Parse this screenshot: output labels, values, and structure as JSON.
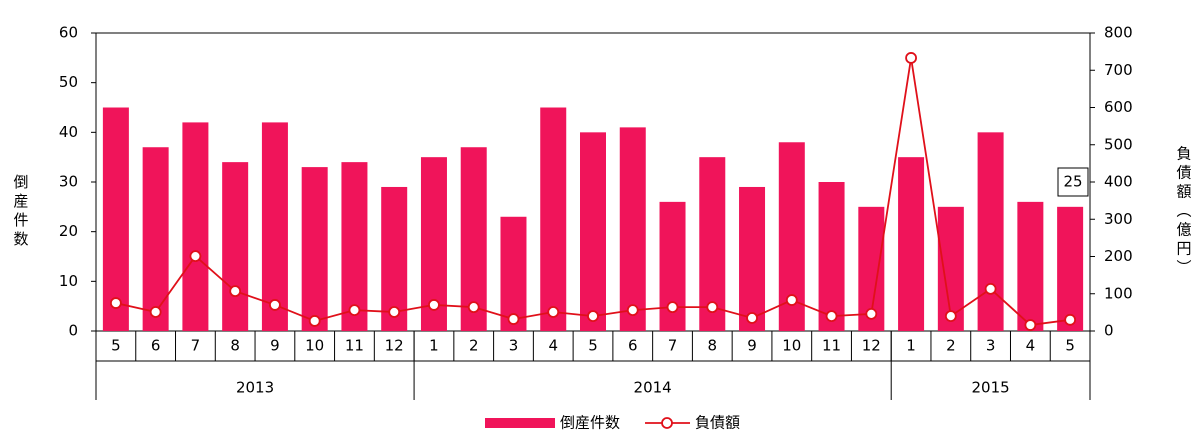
{
  "chart_data": {
    "type": "bar-line",
    "categories": [
      "5",
      "6",
      "7",
      "8",
      "9",
      "10",
      "11",
      "12",
      "1",
      "2",
      "3",
      "4",
      "5",
      "6",
      "7",
      "8",
      "9",
      "10",
      "11",
      "12",
      "1",
      "2",
      "3",
      "4",
      "5"
    ],
    "years": [
      "2013",
      "2014",
      "2015"
    ],
    "y_label": "倒産件数",
    "y2_label": "負債額（億円）",
    "series": [
      {
        "name": "倒産件数",
        "type": "bar",
        "color": "#f0145a",
        "values": [
          45,
          37,
          42,
          34,
          42,
          33,
          34,
          29,
          35,
          37,
          23,
          45,
          40,
          41,
          26,
          35,
          29,
          38,
          30,
          25,
          35,
          25,
          40,
          26,
          25
        ]
      },
      {
        "name": "負債額",
        "type": "line",
        "axis": "y2",
        "color": "#e0101a",
        "values": [
          75,
          51,
          201,
          107,
          70,
          27,
          56,
          51,
          70,
          64,
          32,
          51,
          40,
          56,
          64,
          64,
          35,
          83,
          40,
          46,
          733,
          40,
          113,
          16,
          30
        ]
      }
    ],
    "annotation": "25",
    "ylim": [
      0,
      60
    ],
    "yticks": [
      0,
      10,
      20,
      30,
      40,
      50,
      60
    ],
    "y2lim": [
      0,
      800
    ],
    "y2ticks": [
      0,
      100,
      200,
      300,
      400,
      500,
      600,
      700,
      800
    ],
    "grid": false,
    "legend": "bottom"
  }
}
